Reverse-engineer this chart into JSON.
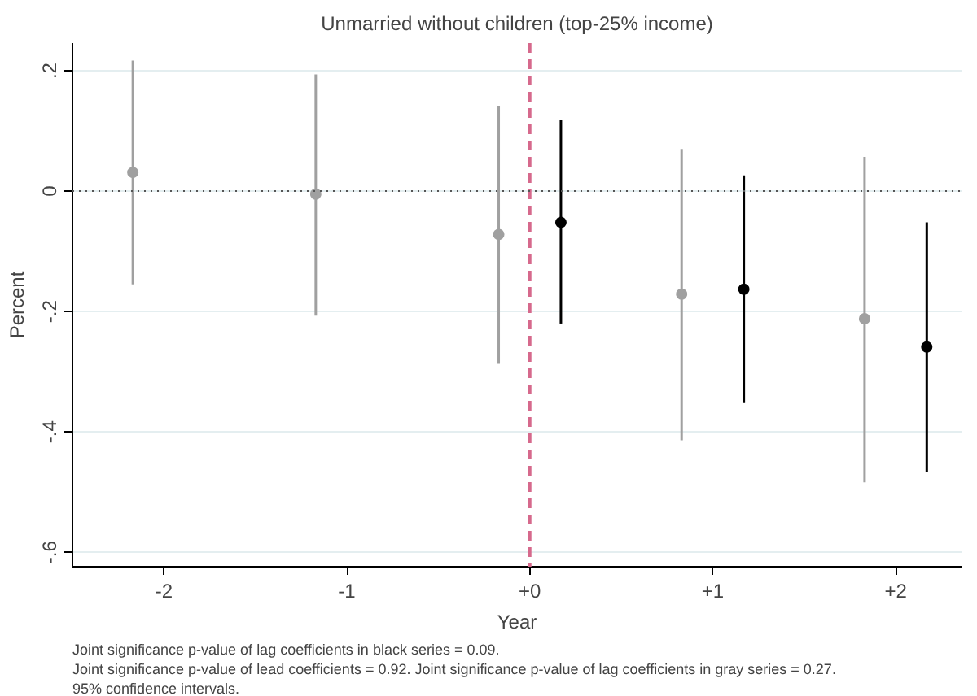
{
  "chart_data": {
    "type": "scatter",
    "title": "Unmarried without children (top-25% income)",
    "xlabel": "Year",
    "ylabel": "Percent",
    "xlim": [
      -2.5,
      2.36
    ],
    "ylim": [
      -0.624,
      0.246
    ],
    "xticks": [
      {
        "value": -2,
        "label": "-2"
      },
      {
        "value": -1,
        "label": "-1"
      },
      {
        "value": 0,
        "label": "+0"
      },
      {
        "value": 1,
        "label": "+1"
      },
      {
        "value": 2,
        "label": "+2"
      }
    ],
    "yticks": [
      {
        "value": 0.2,
        "label": ".2"
      },
      {
        "value": 0,
        "label": "0"
      },
      {
        "value": -0.2,
        "label": "-.2"
      },
      {
        "value": -0.4,
        "label": "-.4"
      },
      {
        "value": -0.6,
        "label": "-.6"
      }
    ],
    "series": [
      {
        "color": "#a0a0a0",
        "x": [
          -2.17,
          -1.17,
          -0.17,
          0.83,
          1.83
        ],
        "values": [
          0.031,
          -0.005,
          -0.072,
          -0.171,
          -0.212
        ],
        "errors": [
          [
            -0.155,
            0.217
          ],
          [
            -0.207,
            0.194
          ],
          [
            -0.287,
            0.142
          ],
          [
            -0.414,
            0.07
          ],
          [
            -0.484,
            0.057
          ]
        ]
      },
      {
        "color": "#000000",
        "x": [
          0.17,
          1.17,
          2.17
        ],
        "values": [
          -0.052,
          -0.163,
          -0.259
        ],
        "errors": [
          [
            -0.22,
            0.119
          ],
          [
            -0.352,
            0.026
          ],
          [
            -0.466,
            -0.052
          ]
        ]
      }
    ],
    "ref_lines": [
      {
        "axis": "x",
        "value": 0,
        "color": "#d6698c",
        "line_style": "dashed"
      },
      {
        "axis": "y",
        "value": 0,
        "color": "#555555",
        "line_style": "dotted"
      }
    ],
    "grid": "y",
    "marker": "circle",
    "annotations": [
      "Joint significance p-value of lag coefficients in black series = 0.09.",
      "Joint significance p-value of lead coefficients = 0.92. Joint significance p-value of lag coefficients in gray series = 0.27.",
      "95% confidence intervals."
    ]
  }
}
